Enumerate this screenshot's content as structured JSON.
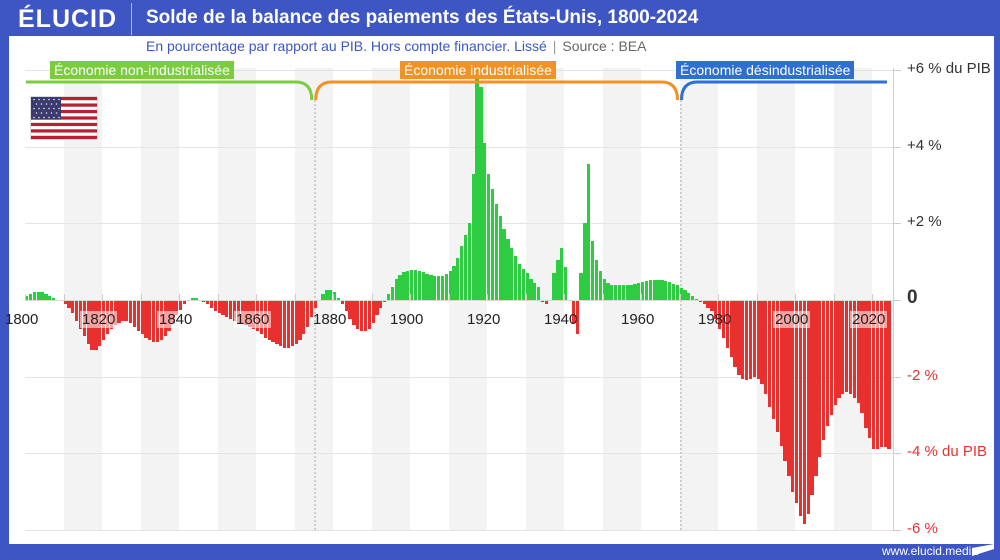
{
  "header": {
    "logo": "ÉLUCID",
    "title": "Solde de la balance des paiements des États-Unis, 1800-2024"
  },
  "subtitle": {
    "text": "En pourcentage par rapport au PIB. Hors compte financier. Lissé",
    "separator": "|",
    "source": "Source : BEA"
  },
  "footer": {
    "url": "www.elucid.media"
  },
  "flag": {
    "icon": "us-flag-icon"
  },
  "eras": [
    {
      "label": "Économie non-industrialisée",
      "color": "#7ccc3f",
      "start": 1800,
      "end": 1875
    },
    {
      "label": "Économie industrialisée",
      "color": "#f39224",
      "start": 1875,
      "end": 1970
    },
    {
      "label": "Économie désindustrialisée",
      "color": "#2f6fcf",
      "start": 1970,
      "end": 2024
    }
  ],
  "colors": {
    "positive": "#2ecc40",
    "negative": "#e8312f",
    "positive_label": "#333333",
    "negative_label": "#e8312f",
    "header_bg": "#3d56c4"
  },
  "chart_data": {
    "type": "bar",
    "title": "Solde de la balance des paiements des États-Unis, 1800-2024",
    "subtitle": "En pourcentage par rapport au PIB. Hors compte financier. Lissé | Source : BEA",
    "xlabel": "",
    "ylabel": "% du PIB",
    "x_start": 1800,
    "x_end": 2024,
    "x_ticks": [
      1800,
      1820,
      1840,
      1860,
      1880,
      1900,
      1920,
      1940,
      1960,
      1980,
      2000,
      2020
    ],
    "y_ticks": [
      {
        "value": 6,
        "label": "+6 % du PIB"
      },
      {
        "value": 4,
        "label": "+4 %"
      },
      {
        "value": 2,
        "label": "+2 %"
      },
      {
        "value": 0,
        "label": "0"
      },
      {
        "value": -2,
        "label": "-2 %"
      },
      {
        "value": -4,
        "label": "-4 % du PIB"
      },
      {
        "value": -6,
        "label": "-6 %"
      }
    ],
    "ylim": [
      -6,
      6
    ],
    "grid": true,
    "legend": "none",
    "annotations": [
      "Économie non-industrialisée",
      "Économie industrialisée",
      "Économie désindustrialisée"
    ],
    "values": [
      0.1,
      0.15,
      0.2,
      0.2,
      0.2,
      0.15,
      0.1,
      0.05,
      0.0,
      0.0,
      -0.1,
      -0.2,
      -0.35,
      -0.55,
      -0.75,
      -0.95,
      -1.15,
      -1.3,
      -1.3,
      -1.2,
      -1.05,
      -0.9,
      -0.75,
      -0.65,
      -0.6,
      -0.55,
      -0.55,
      -0.6,
      -0.7,
      -0.8,
      -0.9,
      -1.0,
      -1.05,
      -1.1,
      -1.1,
      -1.05,
      -0.95,
      -0.8,
      -0.6,
      -0.4,
      -0.25,
      -0.1,
      0.0,
      0.05,
      0.05,
      0.0,
      -0.05,
      -0.1,
      -0.2,
      -0.3,
      -0.35,
      -0.4,
      -0.45,
      -0.5,
      -0.55,
      -0.6,
      -0.6,
      -0.65,
      -0.7,
      -0.75,
      -0.8,
      -0.9,
      -1.0,
      -1.05,
      -1.1,
      -1.15,
      -1.2,
      -1.25,
      -1.25,
      -1.2,
      -1.15,
      -1.05,
      -0.9,
      -0.7,
      -0.45,
      -0.2,
      0.0,
      0.15,
      0.25,
      0.25,
      0.2,
      0.05,
      -0.1,
      -0.3,
      -0.5,
      -0.65,
      -0.75,
      -0.8,
      -0.8,
      -0.75,
      -0.6,
      -0.4,
      -0.2,
      -0.05,
      0.15,
      0.35,
      0.55,
      0.65,
      0.72,
      0.76,
      0.78,
      0.78,
      0.76,
      0.72,
      0.68,
      0.65,
      0.63,
      0.62,
      0.63,
      0.68,
      0.75,
      0.9,
      1.1,
      1.4,
      1.7,
      2.0,
      3.3,
      5.8,
      5.55,
      4.1,
      3.3,
      2.9,
      2.5,
      2.2,
      1.85,
      1.6,
      1.35,
      1.15,
      0.95,
      0.8,
      0.7,
      0.55,
      0.45,
      0.35,
      -0.05,
      -0.1,
      0.0,
      0.7,
      1.05,
      1.35,
      0.85,
      0.0,
      -0.6,
      -0.9,
      0.7,
      2.0,
      3.55,
      1.55,
      1.05,
      0.75,
      0.55,
      0.45,
      0.4,
      0.38,
      0.38,
      0.38,
      0.4,
      0.4,
      0.42,
      0.45,
      0.47,
      0.5,
      0.52,
      0.53,
      0.53,
      0.52,
      0.5,
      0.47,
      0.43,
      0.38,
      0.32,
      0.25,
      0.18,
      0.1,
      0.03,
      -0.05,
      -0.1,
      -0.2,
      -0.3,
      -0.5,
      -0.75,
      -1.0,
      -1.25,
      -1.5,
      -1.75,
      -1.95,
      -2.05,
      -2.1,
      -2.05,
      -2.0,
      -2.05,
      -2.2,
      -2.45,
      -2.8,
      -3.1,
      -3.45,
      -3.8,
      -4.2,
      -4.6,
      -5.0,
      -5.3,
      -5.65,
      -5.85,
      -5.6,
      -5.1,
      -4.6,
      -4.1,
      -3.65,
      -3.3,
      -3.0,
      -2.75,
      -2.55,
      -2.45,
      -2.4,
      -2.45,
      -2.55,
      -2.7,
      -2.95,
      -3.35,
      -3.6,
      -3.9,
      -3.9,
      -3.85,
      -3.85,
      -3.9
    ]
  }
}
